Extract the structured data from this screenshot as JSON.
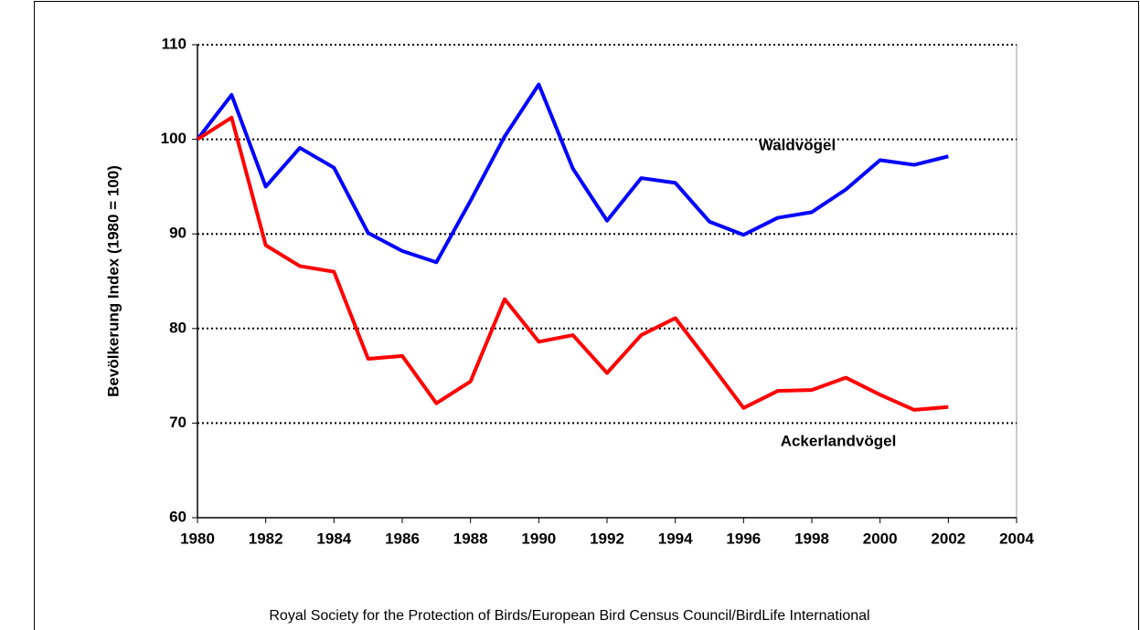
{
  "chart_data": {
    "type": "line",
    "y_label": "Bevölkerung Index  (1980 = 100)",
    "source": "Royal Society for the Protection of Birds/European Bird Census Council/BirdLife International",
    "x": [
      1980,
      1981,
      1982,
      1983,
      1984,
      1985,
      1986,
      1987,
      1988,
      1989,
      1990,
      1991,
      1992,
      1993,
      1994,
      1995,
      1996,
      1997,
      1998,
      1999,
      2000,
      2001,
      2002
    ],
    "series": [
      {
        "name": "Waldvögel",
        "color": "#0000ff",
        "values": [
          100,
          104.7,
          95,
          99.1,
          97,
          90.1,
          88.2,
          87,
          93.5,
          100.3,
          105.8,
          96.9,
          91.4,
          95.9,
          95.4,
          91.3,
          89.9,
          91.7,
          92.3,
          94.7,
          97.8,
          97.3,
          98.2
        ]
      },
      {
        "name": "Ackerlandvögel",
        "color": "#ff0000",
        "values": [
          100,
          102.3,
          88.8,
          86.6,
          86,
          76.8,
          77.1,
          72.1,
          74.4,
          83.1,
          78.6,
          79.3,
          75.3,
          79.3,
          81.1,
          76.4,
          71.6,
          73.4,
          73.5,
          74.8,
          73,
          71.4,
          71.7
        ]
      }
    ],
    "xlim": [
      1980,
      2004
    ],
    "xticks": [
      1980,
      1982,
      1984,
      1986,
      1988,
      1990,
      1992,
      1994,
      1996,
      1998,
      2000,
      2002,
      2004
    ],
    "ylim": [
      60,
      110
    ],
    "yticks": [
      60,
      70,
      80,
      90,
      100,
      110
    ],
    "grid": true
  }
}
